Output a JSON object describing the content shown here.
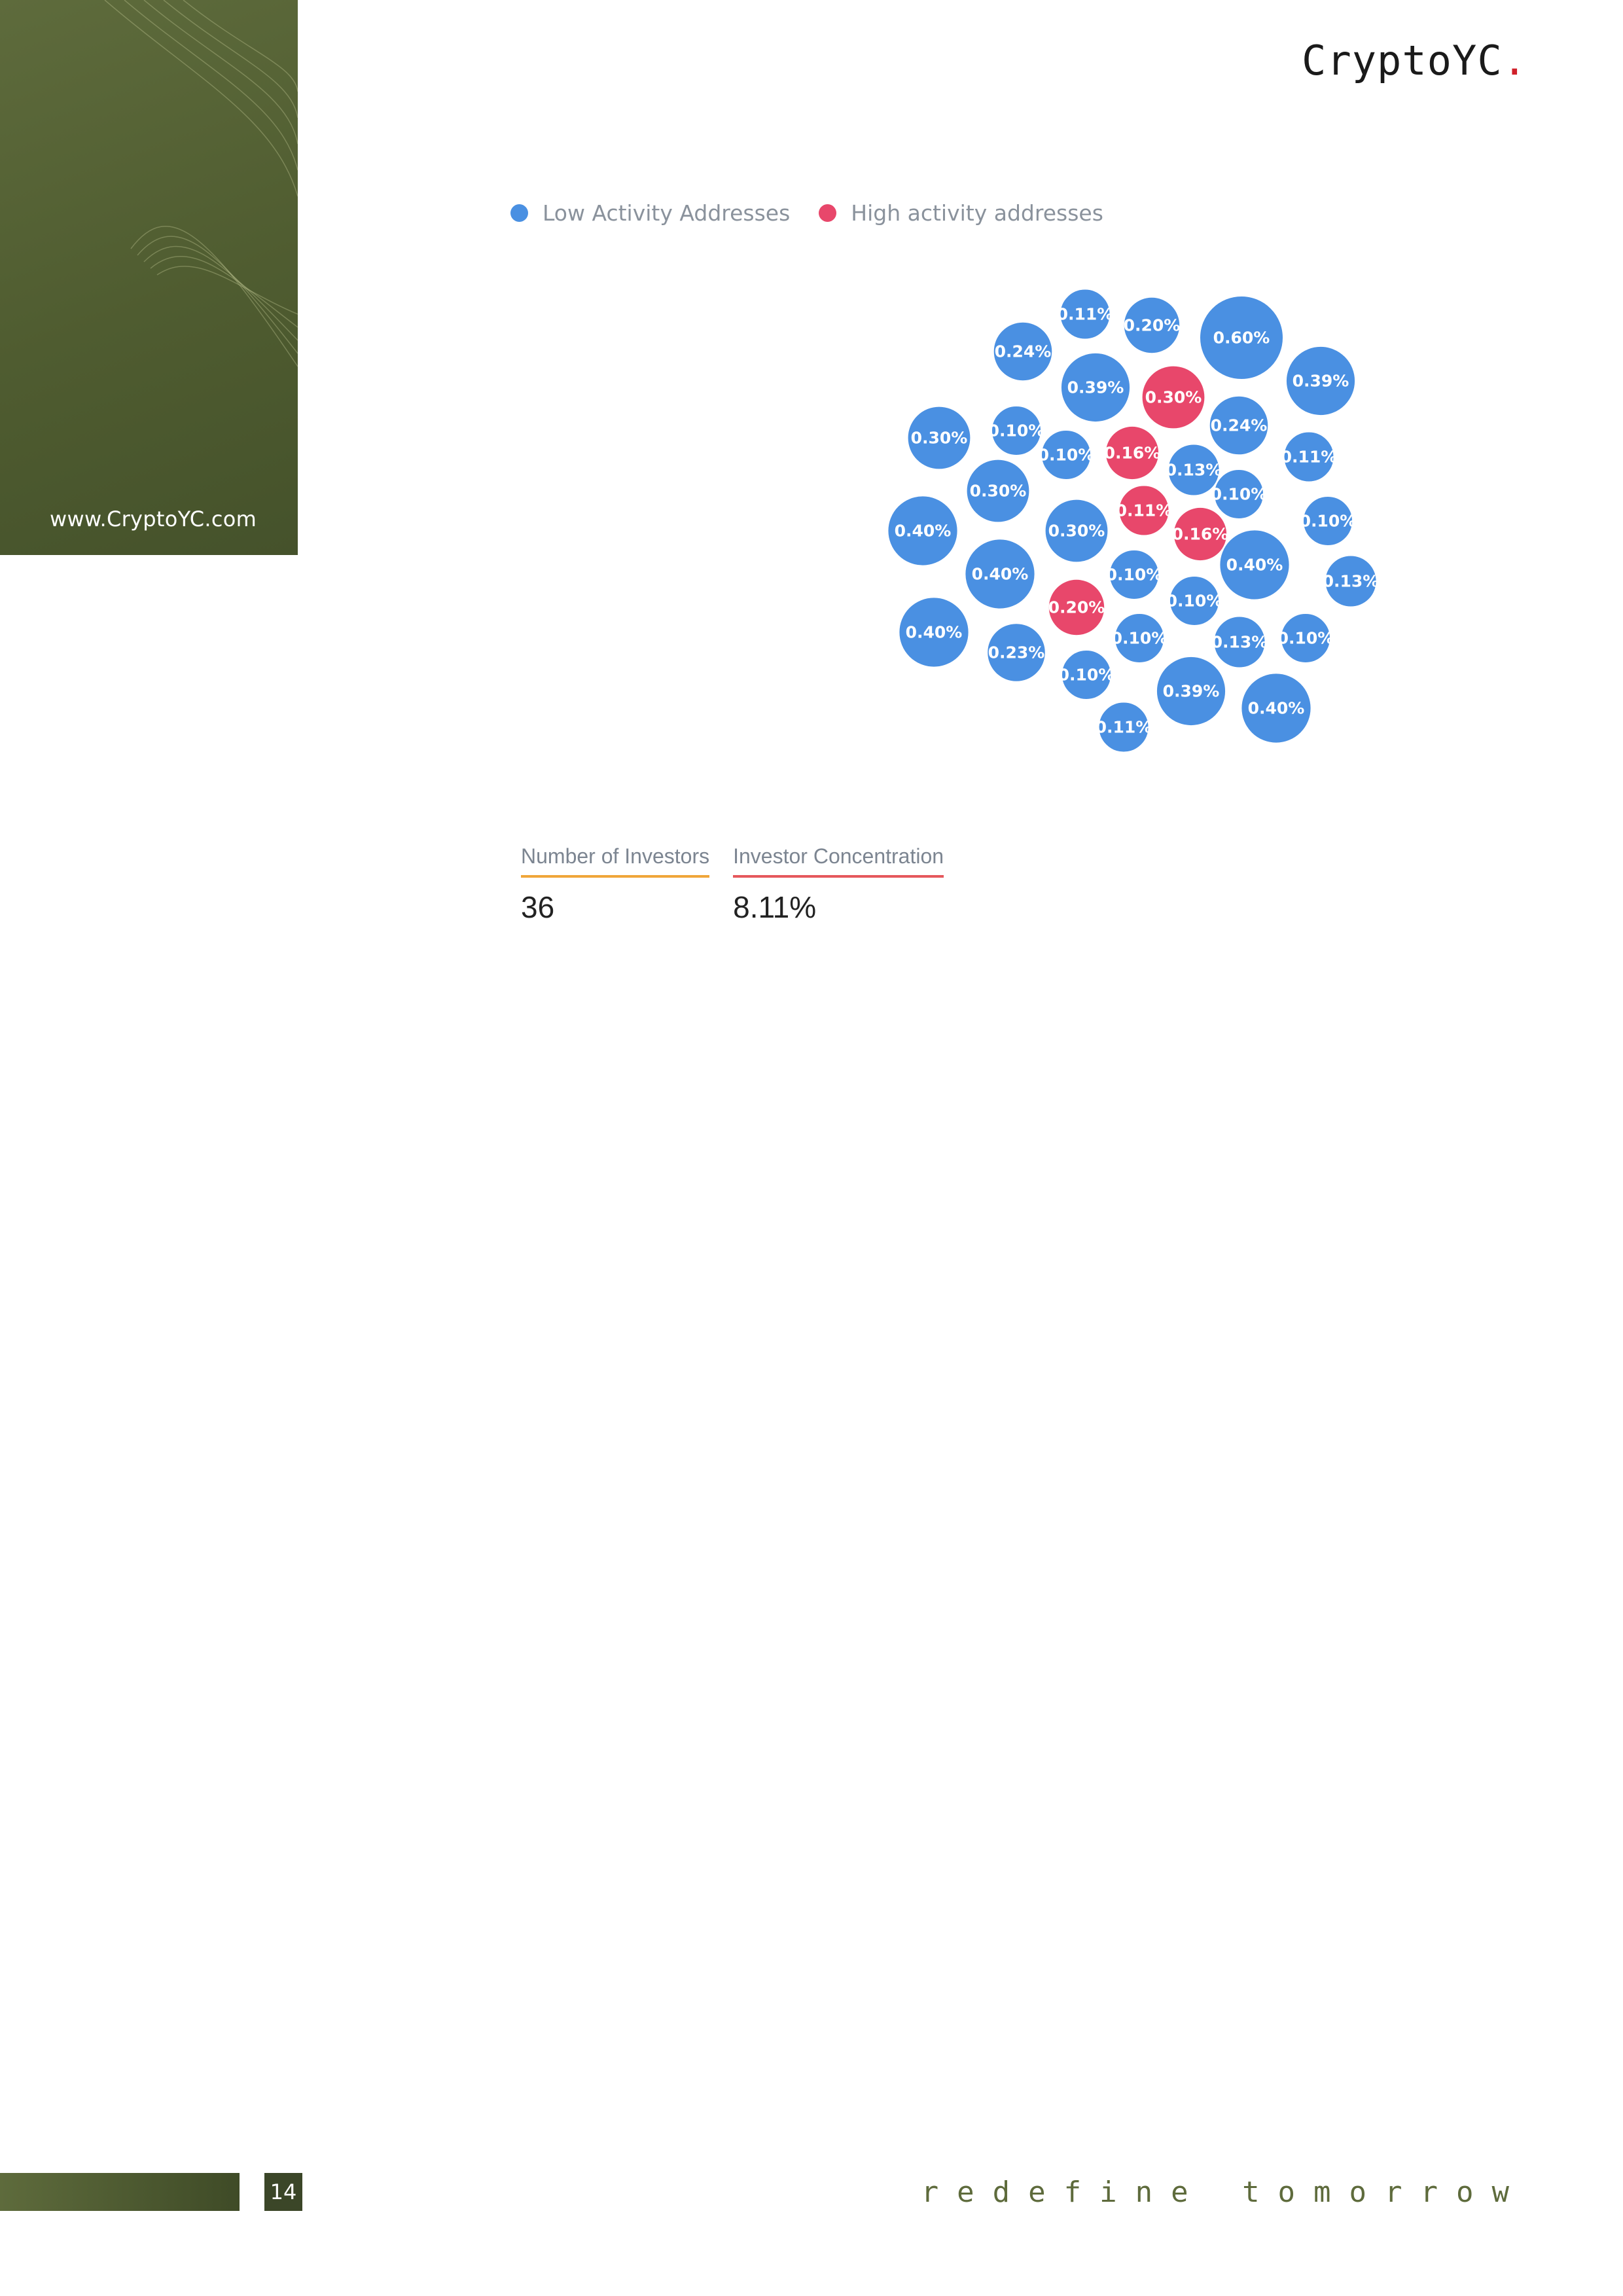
{
  "brand": {
    "name": "CryptoYC",
    "dot": ".",
    "url": "www.CryptoYC.com"
  },
  "colors": {
    "low": "#4a90e2",
    "high": "#e8476b",
    "panel": "#5e6b3c"
  },
  "chart_data": {
    "type": "bubble",
    "legend": [
      {
        "name": "Low Activity Addresses",
        "color": "#4a90e2"
      },
      {
        "name": "High activity addresses",
        "color": "#e8476b"
      }
    ],
    "bubbles": [
      {
        "label": "0.11%",
        "value": 0.11,
        "group": "low"
      },
      {
        "label": "0.20%",
        "value": 0.2,
        "group": "low"
      },
      {
        "label": "0.60%",
        "value": 0.6,
        "group": "low"
      },
      {
        "label": "0.24%",
        "value": 0.24,
        "group": "low"
      },
      {
        "label": "0.39%",
        "value": 0.39,
        "group": "low"
      },
      {
        "label": "0.30%",
        "value": 0.3,
        "group": "high"
      },
      {
        "label": "0.39%",
        "value": 0.39,
        "group": "low"
      },
      {
        "label": "0.24%",
        "value": 0.24,
        "group": "low"
      },
      {
        "label": "0.10%",
        "value": 0.1,
        "group": "low"
      },
      {
        "label": "0.30%",
        "value": 0.3,
        "group": "low"
      },
      {
        "label": "0.10%",
        "value": 0.1,
        "group": "low"
      },
      {
        "label": "0.16%",
        "value": 0.16,
        "group": "high"
      },
      {
        "label": "0.13%",
        "value": 0.13,
        "group": "low"
      },
      {
        "label": "0.11%",
        "value": 0.11,
        "group": "low"
      },
      {
        "label": "0.30%",
        "value": 0.3,
        "group": "low"
      },
      {
        "label": "0.10%",
        "value": 0.1,
        "group": "low"
      },
      {
        "label": "0.40%",
        "value": 0.4,
        "group": "low"
      },
      {
        "label": "0.30%",
        "value": 0.3,
        "group": "low"
      },
      {
        "label": "0.11%",
        "value": 0.11,
        "group": "high"
      },
      {
        "label": "0.16%",
        "value": 0.16,
        "group": "high"
      },
      {
        "label": "0.10%",
        "value": 0.1,
        "group": "low"
      },
      {
        "label": "0.40%",
        "value": 0.4,
        "group": "low"
      },
      {
        "label": "0.10%",
        "value": 0.1,
        "group": "low"
      },
      {
        "label": "0.40%",
        "value": 0.4,
        "group": "low"
      },
      {
        "label": "0.13%",
        "value": 0.13,
        "group": "low"
      },
      {
        "label": "0.20%",
        "value": 0.2,
        "group": "high"
      },
      {
        "label": "0.10%",
        "value": 0.1,
        "group": "low"
      },
      {
        "label": "0.40%",
        "value": 0.4,
        "group": "low"
      },
      {
        "label": "0.23%",
        "value": 0.23,
        "group": "low"
      },
      {
        "label": "0.10%",
        "value": 0.1,
        "group": "low"
      },
      {
        "label": "0.13%",
        "value": 0.13,
        "group": "low"
      },
      {
        "label": "0.10%",
        "value": 0.1,
        "group": "low"
      },
      {
        "label": "0.10%",
        "value": 0.1,
        "group": "low"
      },
      {
        "label": "0.39%",
        "value": 0.39,
        "group": "low"
      },
      {
        "label": "0.40%",
        "value": 0.4,
        "group": "low"
      },
      {
        "label": "0.11%",
        "value": 0.11,
        "group": "low"
      }
    ]
  },
  "stats": [
    {
      "label": "Number of Investors",
      "value": "36"
    },
    {
      "label": "Investor Concentration",
      "value": "8.11%"
    }
  ],
  "footer": {
    "page_number": "14",
    "tagline": "redefine tomorrow"
  }
}
